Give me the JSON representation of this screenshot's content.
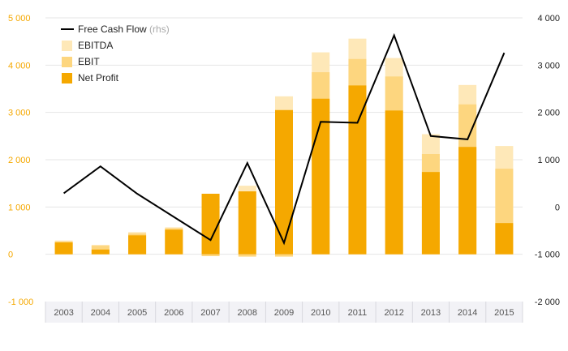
{
  "chart_data": {
    "type": "bar",
    "categories": [
      "2003",
      "2004",
      "2005",
      "2006",
      "2007",
      "2008",
      "2009",
      "2010",
      "2011",
      "2012",
      "2013",
      "2014",
      "2015"
    ],
    "series": [
      {
        "name": "Net Profit",
        "kind": "bar",
        "axis": "left",
        "color": "#f5a800",
        "values": [
          250,
          100,
          400,
          520,
          1280,
          1330,
          3050,
          3290,
          3570,
          3040,
          1740,
          2270,
          660
        ]
      },
      {
        "name": "EBIT",
        "kind": "bar",
        "axis": "left",
        "color": "#fdd67f",
        "values": [
          270,
          180,
          440,
          550,
          -40,
          -50,
          -50,
          3850,
          4130,
          3760,
          2120,
          3170,
          1810
        ]
      },
      {
        "name": "EBITDA",
        "kind": "bar",
        "axis": "left",
        "color": "#fee8b8",
        "values": [
          290,
          200,
          470,
          570,
          1260,
          1450,
          3340,
          4270,
          4560,
          4150,
          2540,
          3580,
          2290
        ]
      },
      {
        "name": "Free Cash Flow",
        "note": "(rhs)",
        "kind": "line",
        "axis": "right",
        "color": "#000000",
        "values": [
          290,
          860,
          280,
          -210,
          -700,
          930,
          -760,
          1800,
          1780,
          3630,
          1500,
          1430,
          3260
        ]
      }
    ],
    "y_left": {
      "range": [
        -1000,
        5000
      ],
      "ticks": [
        -1000,
        0,
        1000,
        2000,
        3000,
        4000,
        5000
      ],
      "tick_labels": [
        "-1 000",
        "0",
        "1 000",
        "2 000",
        "3 000",
        "4 000",
        "5 000"
      ]
    },
    "y_right": {
      "range": [
        -2000,
        4000
      ],
      "ticks": [
        -2000,
        -1000,
        0,
        1000,
        2000,
        3000,
        4000
      ],
      "tick_labels": [
        "-2 000",
        "-1 000",
        "0",
        "1 000",
        "2 000",
        "3 000",
        "4 000"
      ]
    },
    "legend_position": "top-left",
    "grid": true
  }
}
